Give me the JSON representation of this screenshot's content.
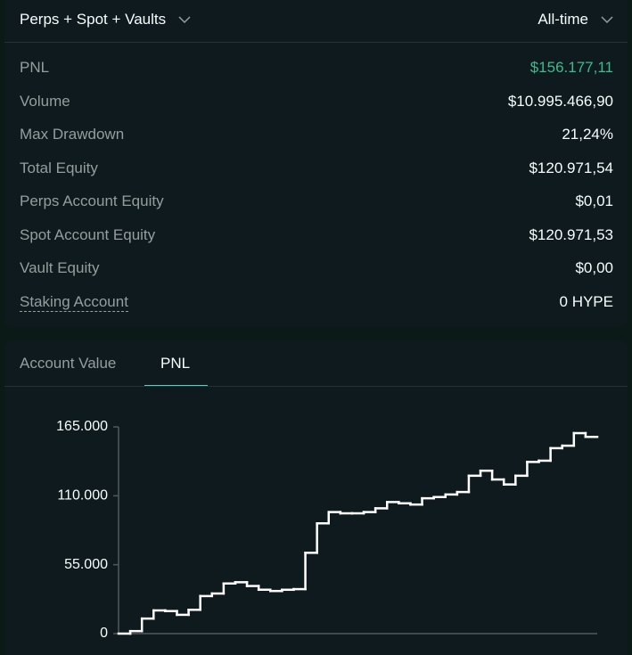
{
  "header": {
    "account_filter": "Perps + Spot + Vaults",
    "time_filter": "All-time"
  },
  "stats": [
    {
      "label": "PNL",
      "value": "$156.177,11"
    },
    {
      "label": "Volume",
      "value": "$10.995.466,90"
    },
    {
      "label": "Max Drawdown",
      "value": "21,24%"
    },
    {
      "label": "Total Equity",
      "value": "$120.971,54"
    },
    {
      "label": "Perps Account Equity",
      "value": "$0,01"
    },
    {
      "label": "Spot Account Equity",
      "value": "$120.971,53"
    },
    {
      "label": "Vault Equity",
      "value": "$0,00"
    },
    {
      "label": "Staking Account",
      "value": "0 HYPE"
    }
  ],
  "tabs": [
    "Account Value",
    "PNL"
  ],
  "chart_data": {
    "type": "step",
    "color": "#ffffff",
    "values": [
      0,
      2000,
      12000,
      18500,
      18000,
      15000,
      19000,
      30000,
      32000,
      40000,
      41000,
      38000,
      35000,
      34000,
      35000,
      35500,
      64500,
      88000,
      97000,
      96000,
      96000,
      97000,
      100000,
      105000,
      104000,
      103000,
      108000,
      109000,
      111000,
      113000,
      126000,
      130000,
      123000,
      119000,
      126000,
      137000,
      138000,
      148000,
      150000,
      160000,
      157000
    ],
    "ylim": [
      0,
      165000
    ],
    "yticks": [
      0,
      {
        "value": 55000,
        "label": "55.000"
      },
      {
        "value": 110000,
        "label": "110.000"
      },
      {
        "value": 165000,
        "label": "165.000"
      }
    ]
  }
}
